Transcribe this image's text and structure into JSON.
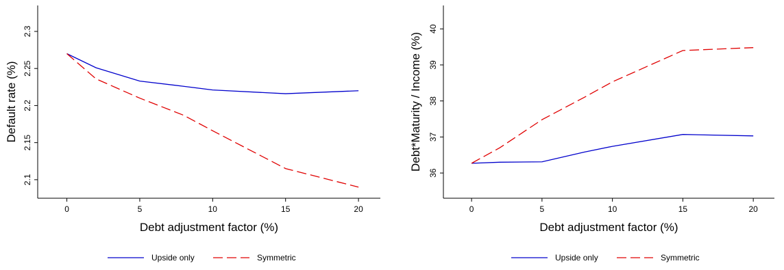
{
  "chart_data": [
    {
      "type": "line",
      "xlabel": "Debt adjustment factor (%)",
      "ylabel": "Default rate (%)",
      "xlim": [
        -2,
        21.5
      ],
      "ylim": [
        2.075,
        2.335
      ],
      "x_ticks": [
        0,
        5,
        10,
        15,
        20
      ],
      "y_ticks": [
        2.1,
        2.15,
        2.2,
        2.25,
        2.3
      ],
      "y_tick_labels": [
        "2.1",
        "2.15",
        "2.2",
        "2.25",
        "2.3"
      ],
      "legend_position": "bottom",
      "series": [
        {
          "name": "Upside only",
          "color": "#0000cc",
          "dash": "solid",
          "x": [
            0,
            2,
            5,
            8,
            10,
            15,
            20
          ],
          "y": [
            2.27,
            2.251,
            2.233,
            2.226,
            2.221,
            2.216,
            2.22
          ]
        },
        {
          "name": "Symmetric",
          "color": "#e00000",
          "dash": "dashed",
          "x": [
            0,
            2,
            5,
            8,
            10,
            15,
            20
          ],
          "y": [
            2.27,
            2.236,
            2.21,
            2.187,
            2.166,
            2.115,
            2.09
          ]
        }
      ]
    },
    {
      "type": "line",
      "xlabel": "Debt adjustment factor (%)",
      "ylabel": "Debt*Maturity / Income (%)",
      "xlim": [
        -2,
        21.5
      ],
      "ylim": [
        35.3,
        40.65
      ],
      "x_ticks": [
        0,
        5,
        10,
        15,
        20
      ],
      "y_ticks": [
        36,
        37,
        38,
        39,
        40
      ],
      "y_tick_labels": [
        "36",
        "37",
        "38",
        "39",
        "40"
      ],
      "legend_position": "bottom",
      "series": [
        {
          "name": "Upside only",
          "color": "#0000cc",
          "dash": "solid",
          "x": [
            0,
            2,
            5,
            8,
            10,
            15,
            20
          ],
          "y": [
            36.27,
            36.3,
            36.31,
            36.58,
            36.74,
            37.07,
            37.03
          ]
        },
        {
          "name": "Symmetric",
          "color": "#e00000",
          "dash": "dashed",
          "x": [
            0,
            2,
            5,
            8,
            10,
            15,
            20
          ],
          "y": [
            36.27,
            36.7,
            37.48,
            38.1,
            38.53,
            39.4,
            39.48
          ]
        }
      ]
    }
  ]
}
